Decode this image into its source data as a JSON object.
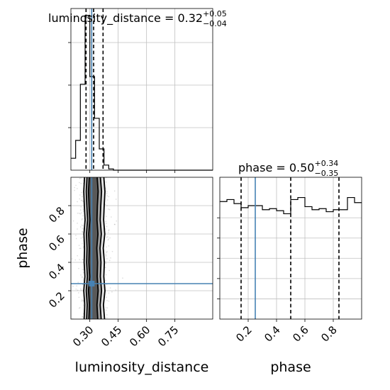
{
  "chart_data": {
    "type": "corner",
    "parameters": [
      "luminosity_distance",
      "phase"
    ],
    "truth": {
      "luminosity_distance": 0.31,
      "phase": 0.25
    },
    "panels": [
      {
        "id": "hist-luminosity-distance",
        "type": "histogram",
        "title_main": "luminosity_distance = 0.32",
        "title_sup": "+0.05",
        "title_sub": "−0.04",
        "xlim": [
          0.2,
          0.95
        ],
        "bins_x": [
          0.2,
          0.225,
          0.25,
          0.275,
          0.3,
          0.325,
          0.35,
          0.375,
          0.4,
          0.425,
          0.45,
          0.475,
          0.5,
          0.525,
          0.55,
          0.575,
          0.6,
          0.625,
          0.65,
          0.675,
          0.7,
          0.725,
          0.75,
          0.775,
          0.8,
          0.825,
          0.85,
          0.875,
          0.9,
          0.925,
          0.95
        ],
        "counts": [
          1.4,
          3.5,
          10.1,
          18.2,
          11.0,
          6.1,
          2.5,
          0.6,
          0.15,
          0,
          0,
          0,
          0,
          0,
          0,
          0,
          0,
          0,
          0,
          0,
          0,
          0,
          0,
          0,
          0,
          0,
          0,
          0,
          0,
          0
        ],
        "ylim": [
          0,
          19
        ],
        "ytick_values": [
          5,
          10,
          15
        ],
        "quantile_lines": [
          0.28,
          0.32,
          0.37
        ],
        "grid": true
      },
      {
        "id": "contour-phase-vs-distance",
        "type": "2d-contour",
        "xlim": [
          0.2,
          0.95
        ],
        "ylim": [
          0.0,
          1.0
        ],
        "xticks": [
          0.3,
          0.45,
          0.6,
          0.75
        ],
        "xtick_labels": [
          "0.30",
          "0.45",
          "0.60",
          "0.75"
        ],
        "yticks": [
          0.2,
          0.4,
          0.6,
          0.8
        ],
        "ytick_labels": [
          "0.2",
          "0.4",
          "0.6",
          "0.8"
        ],
        "xlabel": "luminosity_distance",
        "ylabel": "phase",
        "contour_levels": [
          {
            "y": [
              0.0,
              0.1,
              0.2,
              0.3,
              0.4,
              0.5,
              0.6,
              0.7,
              0.8,
              0.9,
              1.0
            ],
            "left": [
              0.27,
              0.273,
              0.268,
              0.274,
              0.27,
              0.272,
              0.269,
              0.275,
              0.271,
              0.268,
              0.272
            ],
            "right": [
              0.378,
              0.372,
              0.38,
              0.374,
              0.377,
              0.371,
              0.379,
              0.373,
              0.376,
              0.38,
              0.374
            ]
          },
          {
            "y": [
              0.0,
              0.1,
              0.2,
              0.3,
              0.4,
              0.5,
              0.6,
              0.7,
              0.8,
              0.9,
              1.0
            ],
            "left": [
              0.283,
              0.286,
              0.281,
              0.287,
              0.283,
              0.285,
              0.282,
              0.288,
              0.284,
              0.281,
              0.285
            ],
            "right": [
              0.36,
              0.355,
              0.362,
              0.356,
              0.359,
              0.354,
              0.361,
              0.355,
              0.358,
              0.362,
              0.356
            ]
          },
          {
            "y": [
              0.0,
              0.1,
              0.2,
              0.3,
              0.4,
              0.5,
              0.6,
              0.7,
              0.8,
              0.9,
              1.0
            ],
            "left": [
              0.295,
              0.298,
              0.293,
              0.299,
              0.295,
              0.297,
              0.294,
              0.3,
              0.296,
              0.293,
              0.297
            ],
            "right": [
              0.342,
              0.338,
              0.344,
              0.339,
              0.341,
              0.337,
              0.343,
              0.338,
              0.34,
              0.344,
              0.339
            ]
          }
        ],
        "grid": true
      },
      {
        "id": "hist-phase",
        "type": "histogram",
        "title_main": "phase = 0.50",
        "title_sup": "+0.34",
        "title_sub": "−0.35",
        "xlim": [
          0.0,
          1.0
        ],
        "bins_x": [
          0,
          0.05,
          0.1,
          0.15,
          0.2,
          0.25,
          0.3,
          0.35,
          0.4,
          0.45,
          0.5,
          0.55,
          0.6,
          0.65,
          0.7,
          0.75,
          0.8,
          0.85,
          0.9,
          0.95,
          1.0
        ],
        "counts": [
          1.16,
          1.18,
          1.14,
          1.1,
          1.12,
          1.12,
          1.08,
          1.09,
          1.07,
          1.04,
          1.18,
          1.2,
          1.11,
          1.08,
          1.09,
          1.06,
          1.08,
          1.08,
          1.2,
          1.15
        ],
        "ylim": [
          0,
          1.4
        ],
        "ytick_values": [
          0.2,
          0.4,
          0.6,
          0.8,
          1.0
        ],
        "quantile_lines": [
          0.15,
          0.5,
          0.84
        ],
        "xticks": [
          0.2,
          0.4,
          0.6,
          0.8
        ],
        "xtick_labels": [
          "0.2",
          "0.4",
          "0.6",
          "0.8"
        ],
        "xlabel": "phase",
        "grid": true
      }
    ],
    "colors": {
      "truth": "#4682b4",
      "hist": "#000000",
      "grid": "#c0c0c0",
      "fill_outer": "#e6e6e6",
      "fill_mid": "#a0a0a0",
      "fill_inner": "#595959",
      "points": "#999999"
    }
  }
}
